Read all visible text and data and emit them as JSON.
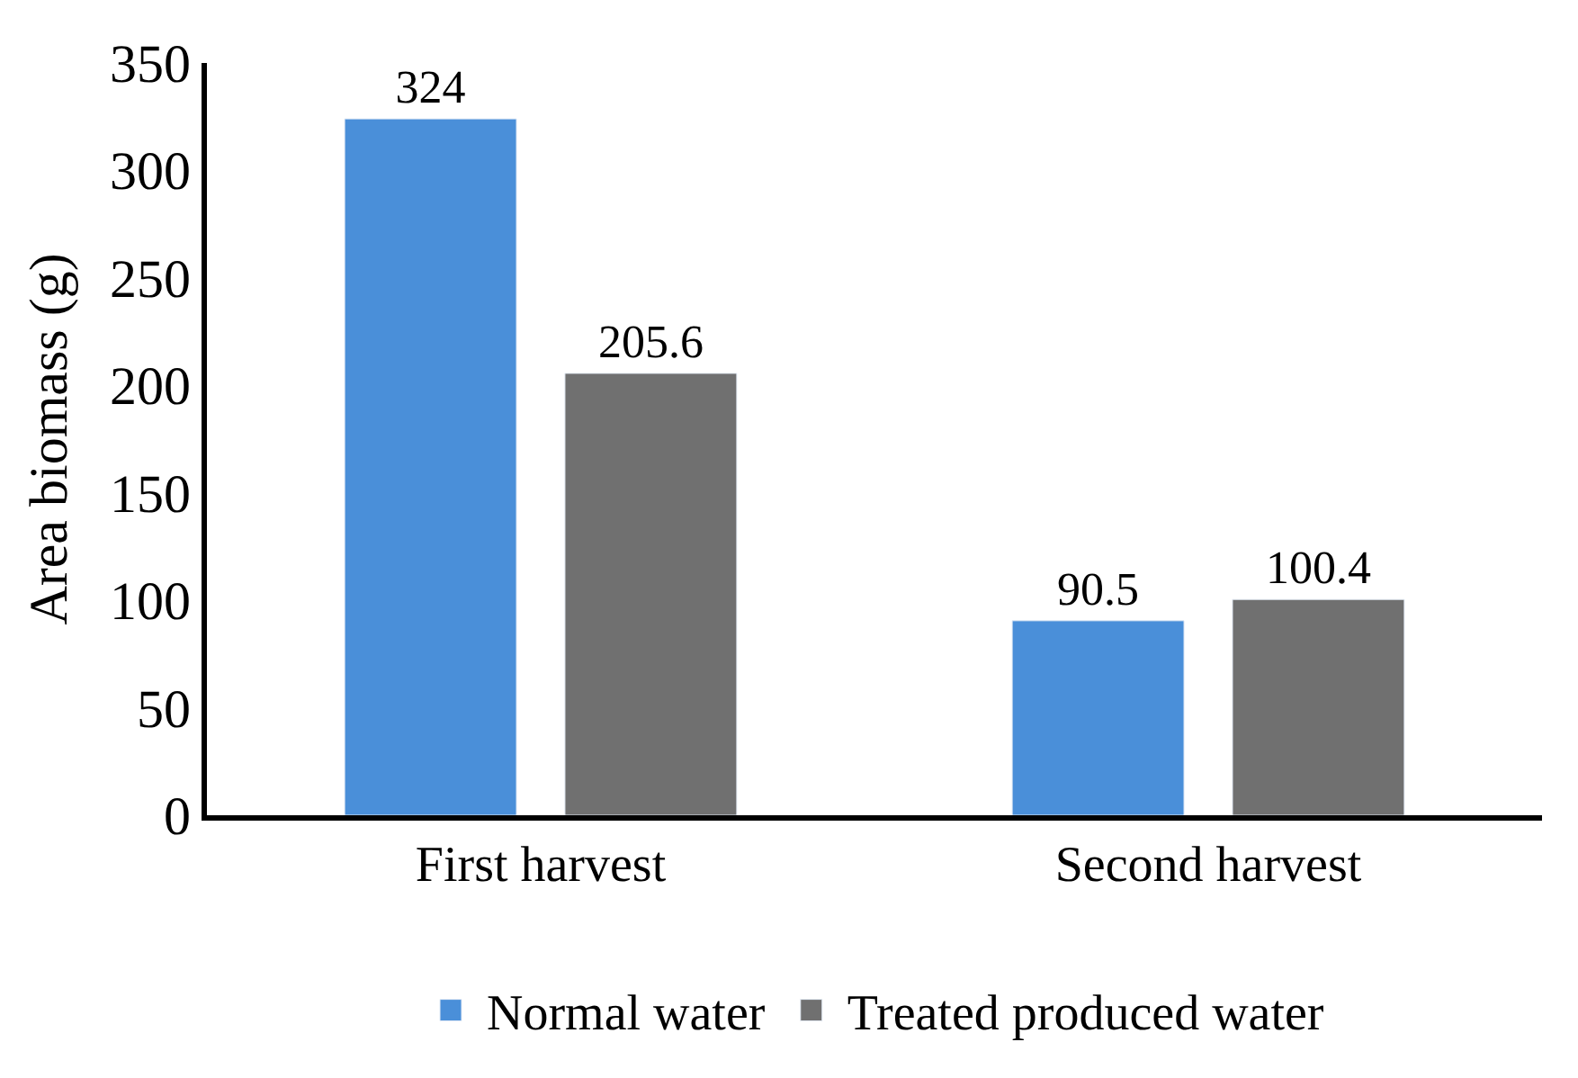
{
  "chart_data": {
    "type": "bar",
    "ylabel": "Area biomass (g)",
    "categories": [
      "First harvest",
      "Second harvest"
    ],
    "series": [
      {
        "name": "Normal water",
        "color": "#4a8fd9",
        "values": [
          324,
          90.5
        ]
      },
      {
        "name": "Treated produced water",
        "color": "#707070",
        "values": [
          205.6,
          100.4
        ]
      }
    ],
    "ylim": [
      0,
      350
    ],
    "yticks": [
      0,
      50,
      100,
      150,
      200,
      250,
      300,
      350
    ],
    "data_labels": true,
    "legend": "bottom"
  }
}
